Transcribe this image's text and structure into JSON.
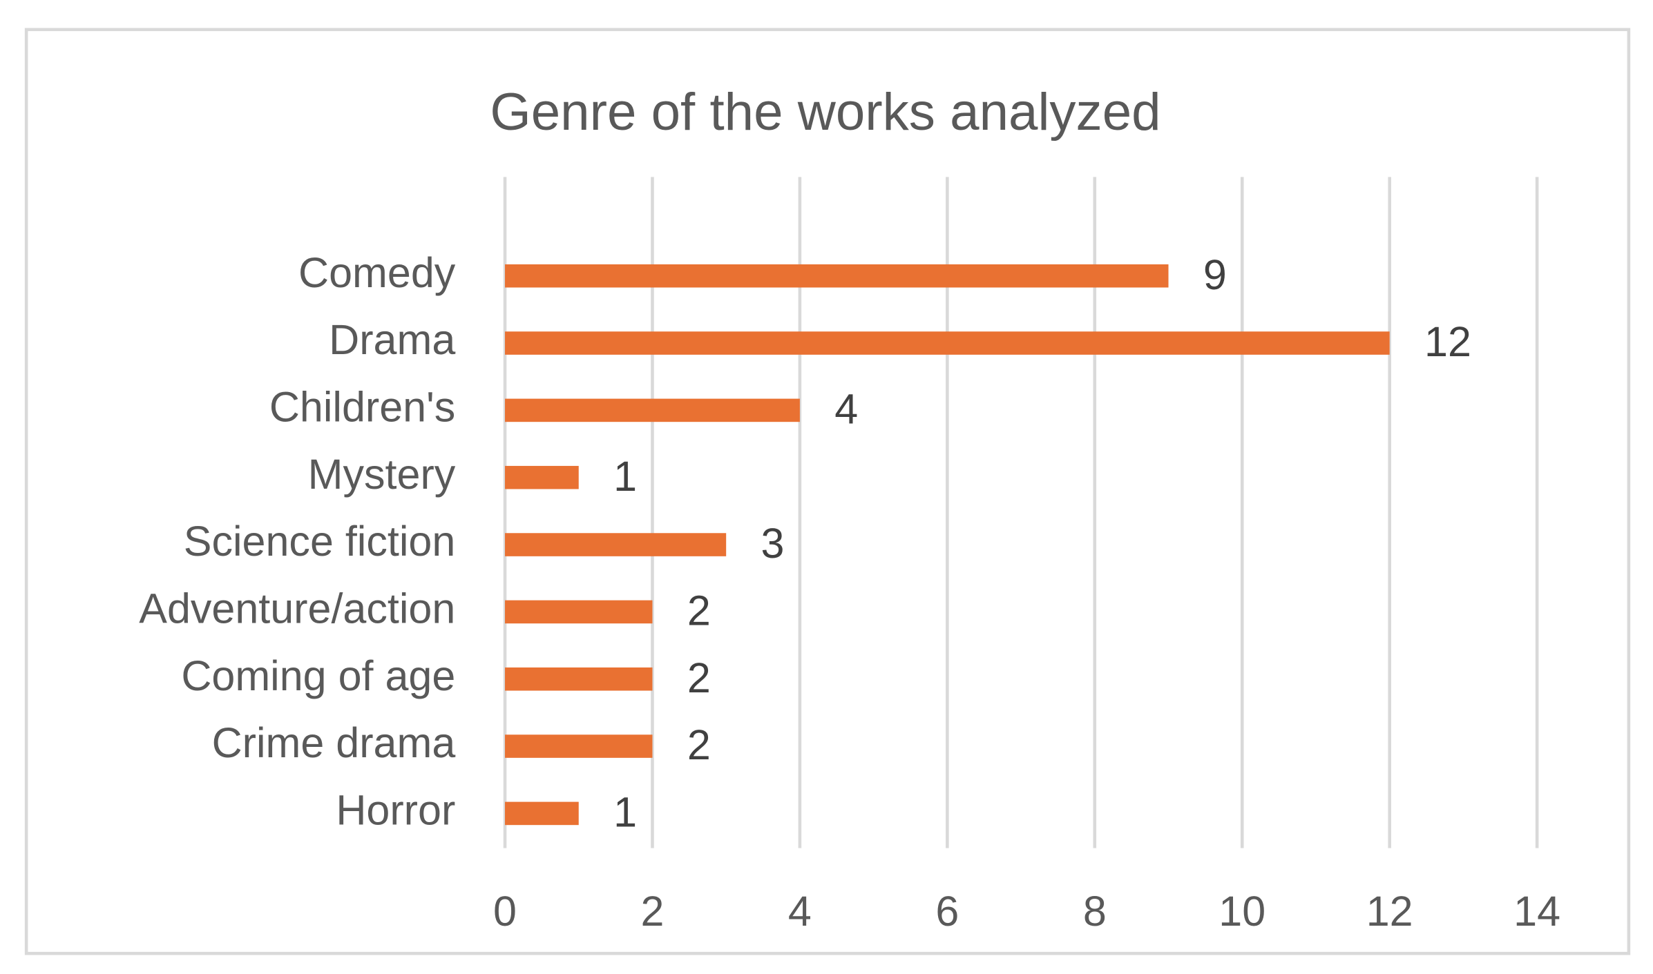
{
  "chart_data": {
    "type": "bar",
    "orientation": "horizontal",
    "title": "Genre of the works analyzed",
    "categories": [
      "Comedy",
      "Drama",
      "Children's",
      "Mystery",
      "Science fiction",
      "Adventure/action",
      "Coming of age",
      "Crime drama",
      "Horror"
    ],
    "values": [
      9,
      12,
      4,
      1,
      3,
      2,
      2,
      2,
      1
    ],
    "color": "#e97132",
    "xlim": [
      0,
      14
    ],
    "xticks": [
      0,
      2,
      4,
      6,
      8,
      10,
      12,
      14
    ],
    "grid": true
  }
}
